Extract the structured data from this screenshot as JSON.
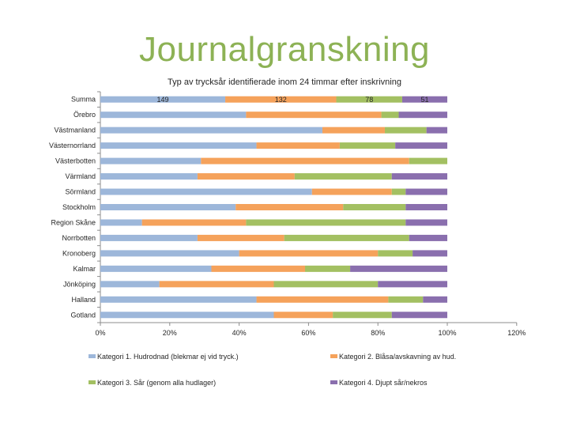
{
  "slide": {
    "title": "Journalgranskning"
  },
  "colors": {
    "cat1": "#9db7da",
    "cat2": "#f5a25b",
    "cat3": "#a3c062",
    "cat4": "#8a6fae",
    "title": "#8db255",
    "axis": "#8c8c8c",
    "text": "#262626"
  },
  "chart_data": {
    "type": "bar",
    "orientation": "horizontal",
    "stacked": "percent",
    "title": "Typ av trycksår identifierade inom 24 timmar efter inskrivning",
    "xlabel": "",
    "ylabel": "",
    "xlim": [
      0,
      120
    ],
    "xticks": [
      "0%",
      "20%",
      "40%",
      "60%",
      "80%",
      "100%",
      "120%"
    ],
    "categories": [
      "Summa",
      "Örebro",
      "Västmanland",
      "Västernorrland",
      "Västerbotten",
      "Värmland",
      "Sörmland",
      "Stockholm",
      "Region Skåne",
      "Norrbotten",
      "Kronoberg",
      "Kalmar",
      "Jönköping",
      "Halland",
      "Gotland"
    ],
    "series": [
      {
        "name": "Kategori 1. Hudrodnad (blekmar ej vid tryck.)",
        "values": [
          36,
          42,
          64,
          45,
          29,
          28,
          61,
          39,
          12,
          28,
          40,
          32,
          17,
          45,
          50
        ]
      },
      {
        "name": "Kategori 2. Blåsa/avskavning av hud.",
        "values": [
          32,
          39,
          18,
          24,
          60,
          28,
          23,
          31,
          30,
          25,
          40,
          27,
          33,
          38,
          17
        ]
      },
      {
        "name": "Kategori 3. Sår (genom alla hudlager)",
        "values": [
          19,
          5,
          12,
          16,
          11,
          28,
          4,
          18,
          46,
          36,
          10,
          13,
          30,
          10,
          17
        ]
      },
      {
        "name": "Kategori 4. Djupt sår/nekros",
        "values": [
          13,
          14,
          6,
          15,
          0,
          16,
          12,
          12,
          12,
          11,
          10,
          28,
          20,
          7,
          16
        ]
      }
    ],
    "data_labels": {
      "row": "Summa",
      "values": [
        "149",
        "132",
        "78",
        "51"
      ]
    },
    "grid": false,
    "legend": "bottom"
  }
}
